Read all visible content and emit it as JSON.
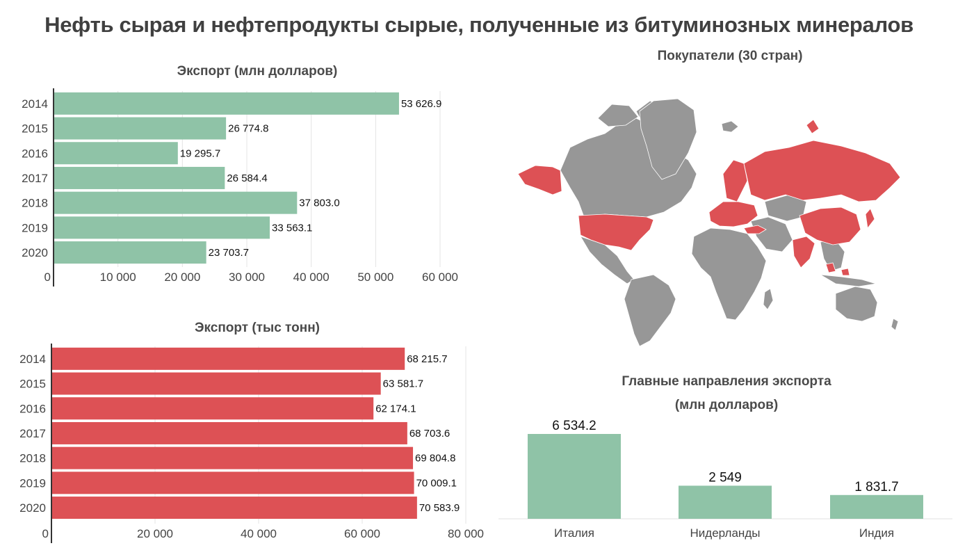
{
  "title": "Нефть сырая и нефтепродукты сырые, полученные из битуминозных минералов",
  "map": {
    "title": "Покупатели (30 стран)",
    "buyer_color": "#dd5155",
    "other_color": "#979797"
  },
  "chart_data": [
    {
      "id": "export-usd",
      "type": "bar",
      "orientation": "horizontal",
      "title": "Экспорт (млн долларов)",
      "categories": [
        "2014",
        "2015",
        "2016",
        "2017",
        "2018",
        "2019",
        "2020"
      ],
      "values": [
        53626.9,
        26774.8,
        19295.7,
        26584.4,
        37803.0,
        33563.1,
        23703.7
      ],
      "value_labels": [
        "53 626.9",
        "26 774.8",
        "19 295.7",
        "26 584.4",
        "37 803.0",
        "33 563.1",
        "23 703.7"
      ],
      "xlim": [
        0,
        60000
      ],
      "ticks": [
        0,
        10000,
        20000,
        30000,
        40000,
        50000,
        60000
      ],
      "tick_labels": [
        "0",
        "10 000",
        "20 000",
        "30 000",
        "40 000",
        "50 000",
        "60 000"
      ],
      "color": "#8fc3a7",
      "grid": true
    },
    {
      "id": "export-tons",
      "type": "bar",
      "orientation": "horizontal",
      "title": "Экспорт (тыс тонн)",
      "categories": [
        "2014",
        "2015",
        "2016",
        "2017",
        "2018",
        "2019",
        "2020"
      ],
      "values": [
        68215.7,
        63581.7,
        62174.1,
        68703.6,
        69804.8,
        70009.1,
        70583.9
      ],
      "value_labels": [
        "68 215.7",
        "63 581.7",
        "62 174.1",
        "68 703.6",
        "69 804.8",
        "70 009.1",
        "70 583.9"
      ],
      "xlim": [
        0,
        80000
      ],
      "ticks": [
        0,
        20000,
        40000,
        60000,
        80000
      ],
      "tick_labels": [
        "0",
        "20 000",
        "40 000",
        "60 000",
        "80 000"
      ],
      "color": "#dd5155",
      "grid": true
    },
    {
      "id": "destinations",
      "type": "bar",
      "orientation": "vertical",
      "title": "Главные направления экспорта",
      "subtitle": "(млн долларов)",
      "categories": [
        "Италия",
        "Нидерланды",
        "Индия"
      ],
      "values": [
        6534.2,
        2549,
        1831.7
      ],
      "value_labels": [
        "6 534.2",
        "2 549",
        "1 831.7"
      ],
      "ylim": [
        0,
        7000
      ],
      "color": "#8fc3a7",
      "grid": false
    }
  ]
}
